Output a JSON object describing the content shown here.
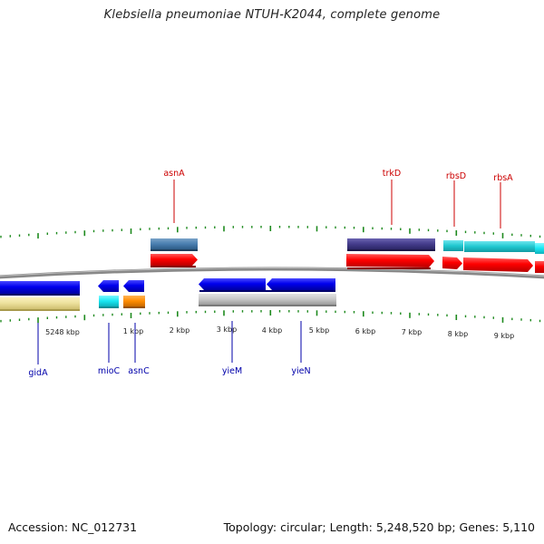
{
  "title": "Klebsiella pneumoniae NTUH-K2044, complete genome",
  "footer": {
    "accession": "Accession: NC_012731",
    "summary": "Topology: circular; Length: 5,248,520 bp; Genes: 5,110"
  },
  "colors": {
    "backbone": "#777777",
    "tick": "#1e8a1e",
    "top_gene_label": "#cc0000",
    "bottom_gene_label": "#0000aa"
  },
  "scale_labels": [
    "5248 kbp",
    "1 kbp",
    "2 kbp",
    "3 kbp",
    "4 kbp",
    "5 kbp",
    "6 kbp",
    "7 kbp",
    "8 kbp",
    "9 kbp"
  ],
  "top_labels": [
    "asnA",
    "trkD",
    "rbsD",
    "rbsA"
  ],
  "bottom_labels": [
    "gidA",
    "mioC",
    "asnC",
    "yieM",
    "yieN"
  ]
}
